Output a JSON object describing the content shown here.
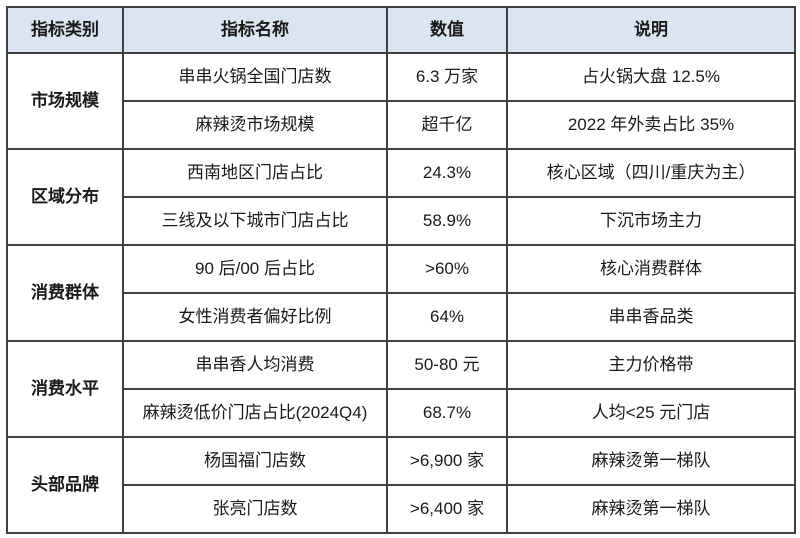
{
  "table": {
    "headers": [
      "指标类别",
      "指标名称",
      "数值",
      "说明"
    ],
    "groups": [
      {
        "category": "市场规模",
        "rows": [
          {
            "name": "串串火锅全国门店数",
            "value": "6.3 万家",
            "note": "占火锅大盘 12.5%"
          },
          {
            "name": "麻辣烫市场规模",
            "value": "超千亿",
            "note": "2022 年外卖占比 35%"
          }
        ]
      },
      {
        "category": "区域分布",
        "rows": [
          {
            "name": "西南地区门店占比",
            "value": "24.3%",
            "note": "核心区域（四川/重庆为主）"
          },
          {
            "name": "三线及以下城市门店占比",
            "value": "58.9%",
            "note": "下沉市场主力"
          }
        ]
      },
      {
        "category": "消费群体",
        "rows": [
          {
            "name": "90 后/00 后占比",
            "value": ">60%",
            "note": "核心消费群体"
          },
          {
            "name": "女性消费者偏好比例",
            "value": "64%",
            "note": "串串香品类"
          }
        ]
      },
      {
        "category": "消费水平",
        "rows": [
          {
            "name": "串串香人均消费",
            "value": "50-80 元",
            "note": "主力价格带"
          },
          {
            "name": "麻辣烫低价门店占比(2024Q4)",
            "value": "68.7%",
            "note": "人均<25 元门店"
          }
        ]
      },
      {
        "category": "头部品牌",
        "rows": [
          {
            "name": "杨国福门店数",
            "value": ">6,900 家",
            "note": "麻辣烫第一梯队"
          },
          {
            "name": "张亮门店数",
            "value": ">6,400 家",
            "note": "麻辣烫第一梯队"
          }
        ]
      }
    ],
    "colors": {
      "header_bg": "#dbe5f1",
      "border": "#3f3f3f",
      "text": "#1a1a1a",
      "page_bg": "#ffffff"
    }
  },
  "chart_data": {
    "type": "table",
    "columns": [
      "指标类别",
      "指标名称",
      "数值",
      "说明"
    ],
    "rows": [
      [
        "市场规模",
        "串串火锅全国门店数",
        "6.3 万家",
        "占火锅大盘 12.5%"
      ],
      [
        "市场规模",
        "麻辣烫市场规模",
        "超千亿",
        "2022 年外卖占比 35%"
      ],
      [
        "区域分布",
        "西南地区门店占比",
        "24.3%",
        "核心区域（四川/重庆为主）"
      ],
      [
        "区域分布",
        "三线及以下城市门店占比",
        "58.9%",
        "下沉市场主力"
      ],
      [
        "消费群体",
        "90 后/00 后占比",
        ">60%",
        "核心消费群体"
      ],
      [
        "消费群体",
        "女性消费者偏好比例",
        "64%",
        "串串香品类"
      ],
      [
        "消费水平",
        "串串香人均消费",
        "50-80 元",
        "主力价格带"
      ],
      [
        "消费水平",
        "麻辣烫低价门店占比(2024Q4)",
        "68.7%",
        "人均<25 元门店"
      ],
      [
        "头部品牌",
        "杨国福门店数",
        ">6,900 家",
        "麻辣烫第一梯队"
      ],
      [
        "头部品牌",
        "张亮门店数",
        ">6,400 家",
        "麻辣烫第一梯队"
      ]
    ]
  }
}
